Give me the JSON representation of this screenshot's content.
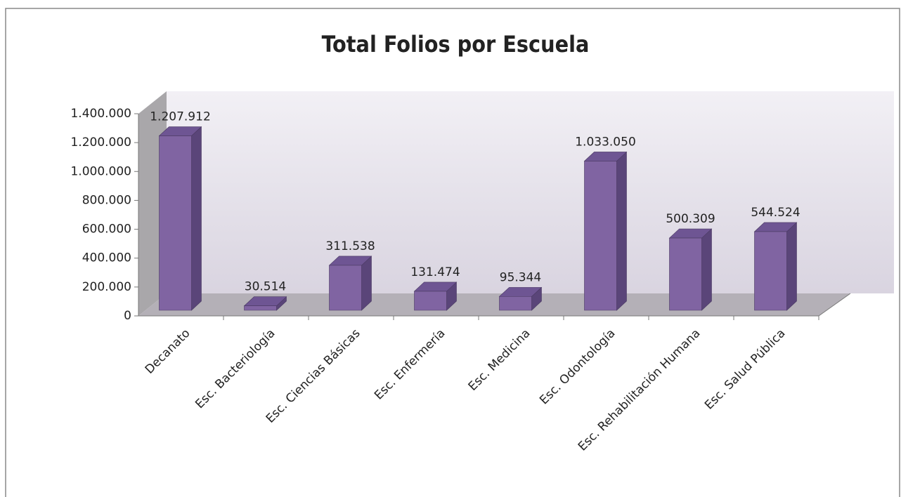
{
  "chart_data": {
    "type": "bar3d",
    "title": "Total Folios por Escuela",
    "categories": [
      "Decanato",
      "Esc. Bacteriología",
      "Esc. Ciencias Básicas",
      "Esc. Enfermería",
      "Esc. Medicina",
      "Esc. Odontología",
      "Esc. Rehabilitación Humana",
      "Esc. Salud Pública"
    ],
    "values": [
      1207912,
      30514,
      311538,
      131474,
      95344,
      1033050,
      500309,
      544524
    ],
    "value_labels": [
      "1.207.912",
      "30.514",
      "311.538",
      "131.474",
      "95.344",
      "1.033.050",
      "500.309",
      "544.524"
    ],
    "color": "#8064a2",
    "ylim": [
      0,
      1400000
    ],
    "yticks": [
      0,
      {
        "value": 200000,
        "label": "200.000"
      },
      {
        "value": 400000,
        "label": "400.000"
      },
      {
        "value": 600000,
        "label": "600.000"
      },
      {
        "value": 800000,
        "label": "800.000"
      },
      {
        "value": 1000000,
        "label": "1.000.000"
      },
      {
        "value": 1200000,
        "label": "1.200.000"
      },
      {
        "value": 1400000,
        "label": "1.400.000"
      }
    ]
  }
}
